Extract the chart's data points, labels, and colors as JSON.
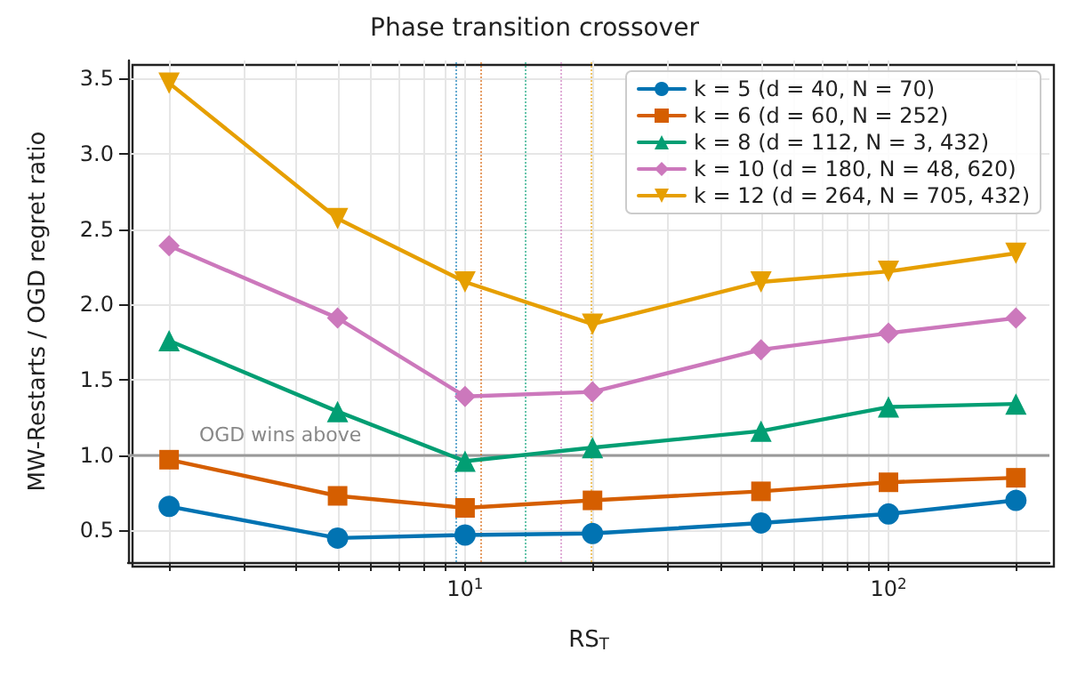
{
  "chart_data": {
    "type": "line",
    "title": "Phase transition crossover",
    "xlabel": "RS$_{T}$",
    "ylabel": "MW-Restarts / OGD regret ratio",
    "x": [
      2,
      5,
      10,
      20,
      50,
      100,
      200
    ],
    "series": [
      {
        "name": "k = 5 (d = 40, N = 70)",
        "color": "#0173b2",
        "marker": "circle",
        "values": [
          0.66,
          0.45,
          0.47,
          0.48,
          0.55,
          0.61,
          0.7
        ]
      },
      {
        "name": "k = 6 (d = 60, N = 252)",
        "color": "#d55e00",
        "marker": "square",
        "values": [
          0.97,
          0.73,
          0.65,
          0.7,
          0.76,
          0.82,
          0.85
        ]
      },
      {
        "name": "k = 8 (d = 112, N = 3, 432)",
        "color": "#029e73",
        "marker": "triangle",
        "values": [
          1.76,
          1.29,
          0.96,
          1.05,
          1.16,
          1.32,
          1.34
        ]
      },
      {
        "name": "k = 10 (d = 180, N = 48, 620)",
        "color": "#cc78bc",
        "marker": "diamond",
        "values": [
          2.39,
          1.91,
          1.39,
          1.42,
          1.7,
          1.81,
          1.91
        ]
      },
      {
        "name": "k = 12 (d = 264, N = 705, 432)",
        "color": "#e69f00",
        "marker": "triangle-down",
        "values": [
          3.47,
          2.57,
          2.15,
          1.87,
          2.15,
          2.22,
          2.34
        ]
      }
    ],
    "log": "x",
    "xlim": [
      1.6,
      240
    ],
    "xticks": [
      {
        "value": 2,
        "label": null
      },
      {
        "value": 3,
        "label": null
      },
      {
        "value": 4,
        "label": null
      },
      {
        "value": 5,
        "label": null
      },
      {
        "value": 6,
        "label": null
      },
      {
        "value": 7,
        "label": null
      },
      {
        "value": 8,
        "label": null
      },
      {
        "value": 9,
        "label": null
      },
      {
        "value": 10,
        "label": "10$^{1}$"
      },
      {
        "value": 20,
        "label": null
      },
      {
        "value": 30,
        "label": null
      },
      {
        "value": 40,
        "label": null
      },
      {
        "value": 50,
        "label": null
      },
      {
        "value": 60,
        "label": null
      },
      {
        "value": 70,
        "label": null
      },
      {
        "value": 80,
        "label": null
      },
      {
        "value": 90,
        "label": null
      },
      {
        "value": 100,
        "label": "10$^{2}$"
      },
      {
        "value": 200,
        "label": null
      }
    ],
    "ylim": [
      0.29,
      3.62
    ],
    "yticks": [
      {
        "value": 0.5,
        "label": "0.5"
      },
      {
        "value": 1,
        "label": "1.0"
      },
      {
        "value": 1.5,
        "label": "1.5"
      },
      {
        "value": 2,
        "label": "2.0"
      },
      {
        "value": 2.5,
        "label": "2.5"
      },
      {
        "value": 3,
        "label": "3.0"
      },
      {
        "value": 3.5,
        "label": "3.5"
      }
    ],
    "ref_lines": [
      {
        "axis": "y",
        "value": 1,
        "color": "#999999",
        "line_style": "solid"
      },
      {
        "axis": "x",
        "value": 9.5,
        "color": "#0173b2",
        "line_style": "dotted"
      },
      {
        "axis": "x",
        "value": 10.9,
        "color": "#d55e00",
        "line_style": "dotted"
      },
      {
        "axis": "x",
        "value": 13.9,
        "color": "#029e73",
        "line_style": "dotted"
      },
      {
        "axis": "x",
        "value": 16.9,
        "color": "#cc78bc",
        "line_style": "dotted"
      },
      {
        "axis": "x",
        "value": 19.9,
        "color": "#e69f00",
        "line_style": "dotted"
      }
    ],
    "annotations": [
      "OGD wins above"
    ],
    "grid": true,
    "legend": "top right",
    "line_style": "solid"
  }
}
